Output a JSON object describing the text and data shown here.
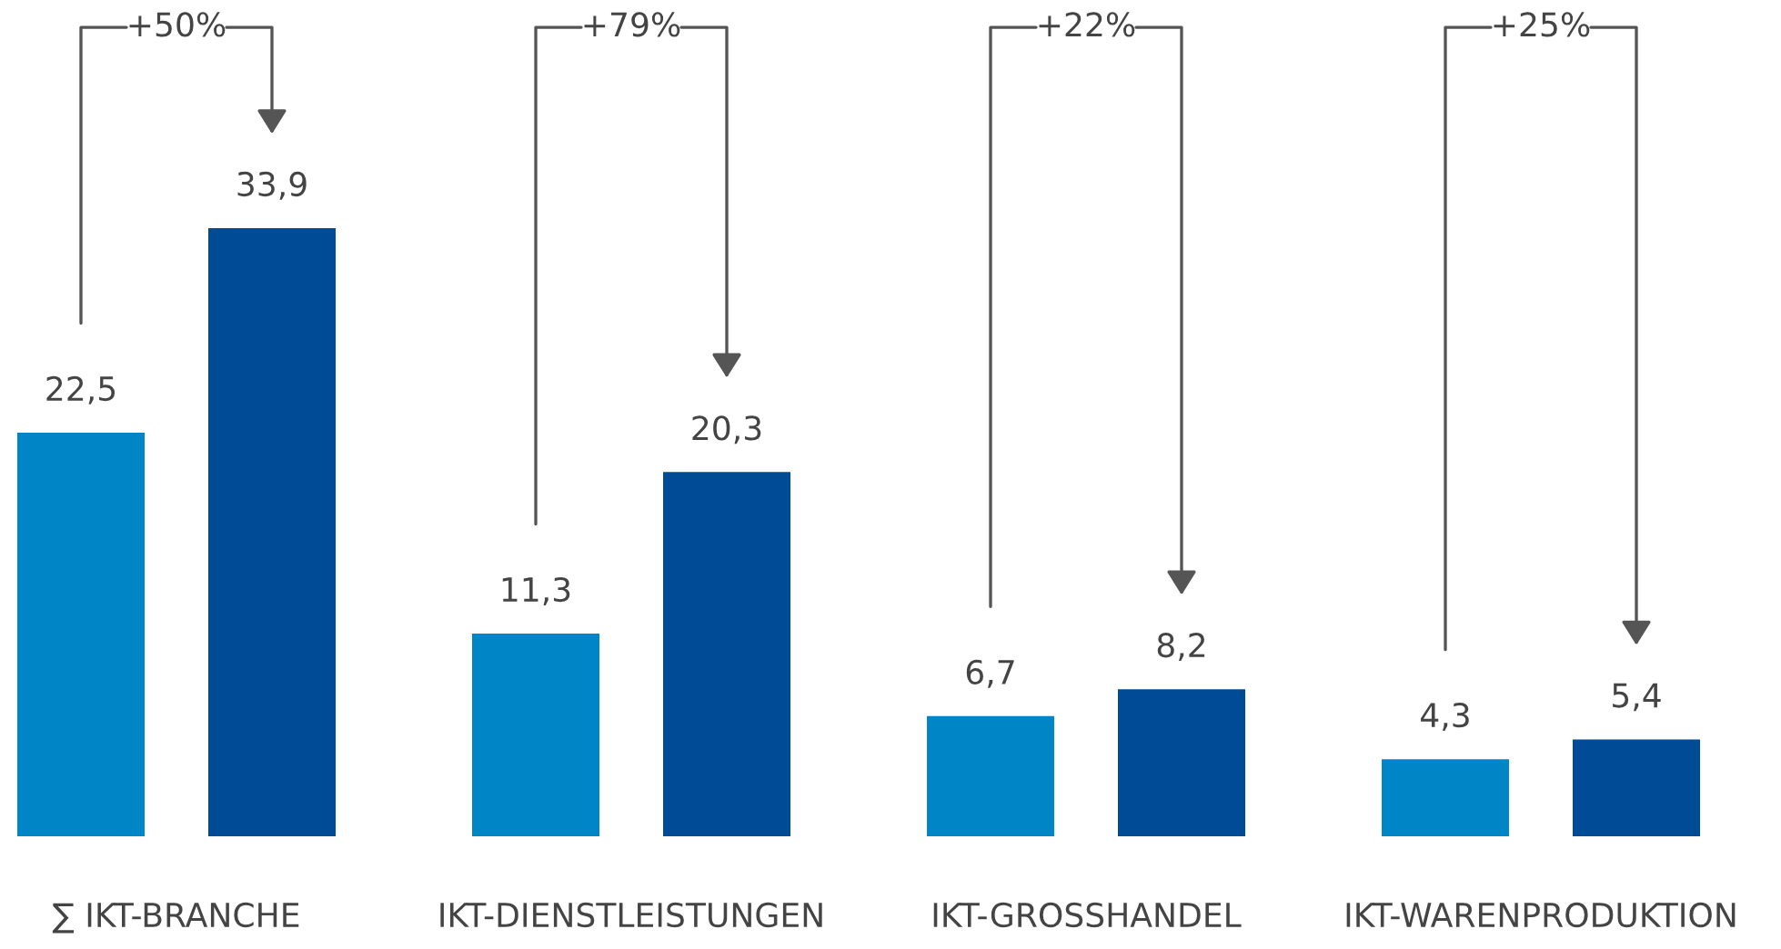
{
  "chart_data": {
    "type": "bar",
    "categories": [
      "∑ IKT-BRANCHE",
      "IKT-DIENSTLEISTUNGEN",
      "IKT-GROSSHANDEL",
      "IKT-WARENPRODUKTION"
    ],
    "series": [
      {
        "color": "#0086c6",
        "values": [
          22.5,
          11.3,
          6.7,
          4.3
        ],
        "value_labels": [
          "22,5",
          "11,3",
          "6,7",
          "4,3"
        ]
      },
      {
        "color": "#004b96",
        "values": [
          33.9,
          20.3,
          8.2,
          5.4
        ],
        "value_labels": [
          "33,9",
          "20,3",
          "8,2",
          "5,4"
        ]
      }
    ],
    "annotations": [
      "+50%",
      "+79%",
      "+22%",
      "+25%"
    ],
    "grid": false,
    "legend": false
  }
}
